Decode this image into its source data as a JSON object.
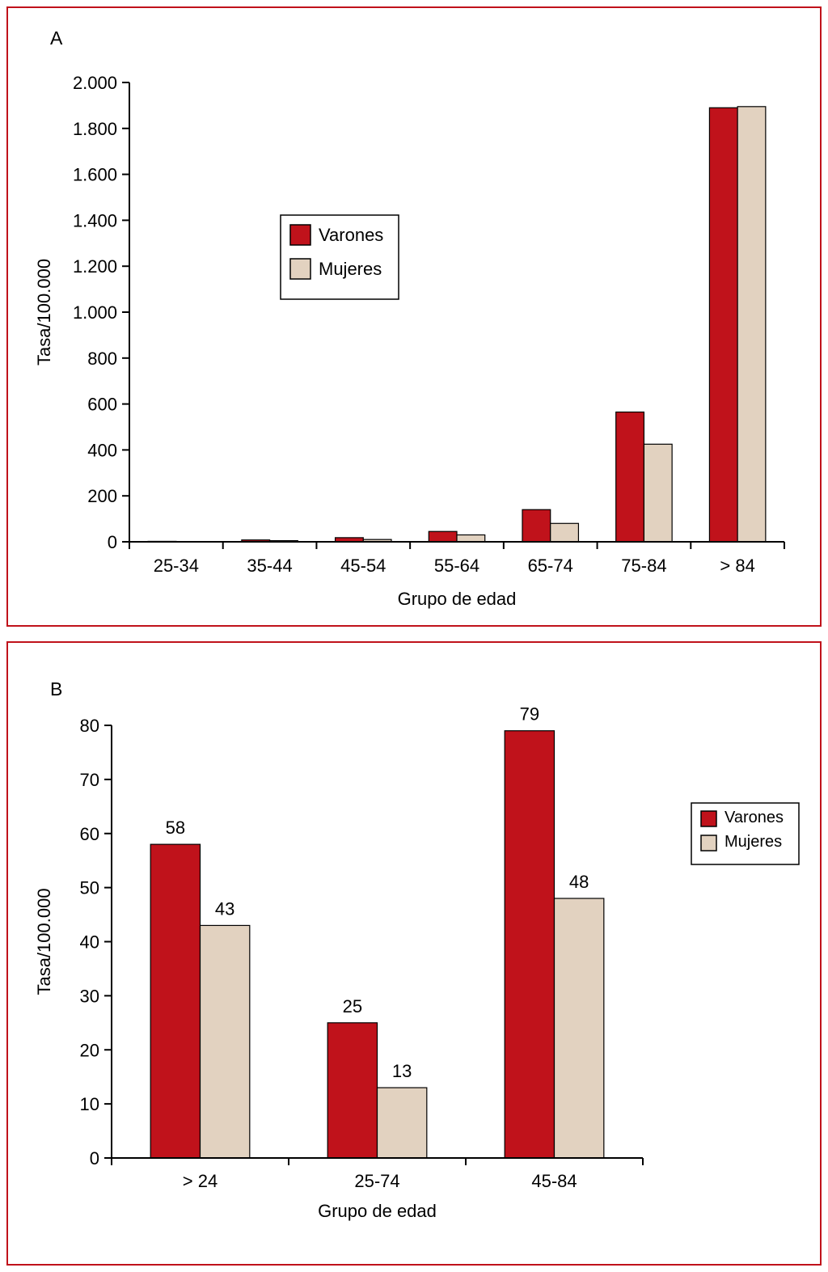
{
  "figure": {
    "panels": [
      {
        "letter": "A"
      },
      {
        "letter": "B"
      }
    ]
  },
  "colors": {
    "varones_red": "#c0121b",
    "mujeres_tan": "#e2d2c0",
    "frame_border": "#c0121b",
    "axis": "#000000"
  },
  "chart_data": [
    {
      "type": "bar",
      "panel_label": "A",
      "title": "",
      "categories": [
        "25-34",
        "35-44",
        "45-54",
        "55-64",
        "65-74",
        "75-84",
        "> 84"
      ],
      "series": [
        {
          "name": "Varones",
          "color": "#c0121b",
          "values": [
            2,
            8,
            18,
            45,
            140,
            565,
            1890
          ]
        },
        {
          "name": "Mujeres",
          "color": "#e2d2c0",
          "values": [
            1,
            5,
            10,
            30,
            80,
            425,
            1895
          ]
        }
      ],
      "xlabel": "Grupo de edad",
      "ylabel": "Tasa/100.000",
      "ylim": [
        0,
        2000
      ],
      "ytick_step": 200,
      "ytick_labels": [
        "0",
        "200",
        "400",
        "600",
        "800",
        "1.000",
        "1.200",
        "1.400",
        "1.600",
        "1.800",
        "2.000"
      ],
      "legend_position": "inside-upper-left",
      "legend_entries": [
        "Varones",
        "Mujeres"
      ],
      "grid": false,
      "data_labels": false
    },
    {
      "type": "bar",
      "panel_label": "B",
      "title": "",
      "categories": [
        "> 24",
        "25-74",
        "45-84"
      ],
      "series": [
        {
          "name": "Varones",
          "color": "#c0121b",
          "values": [
            58,
            25,
            79
          ]
        },
        {
          "name": "Mujeres",
          "color": "#e2d2c0",
          "values": [
            43,
            13,
            48
          ]
        }
      ],
      "xlabel": "Grupo de edad",
      "ylabel": "Tasa/100.000",
      "ylim": [
        0,
        80
      ],
      "ytick_step": 10,
      "ytick_labels": [
        "0",
        "10",
        "20",
        "30",
        "40",
        "50",
        "60",
        "70",
        "80"
      ],
      "legend_position": "right-outside",
      "legend_entries": [
        "Varones",
        "Mujeres"
      ],
      "grid": false,
      "data_labels": true
    }
  ]
}
